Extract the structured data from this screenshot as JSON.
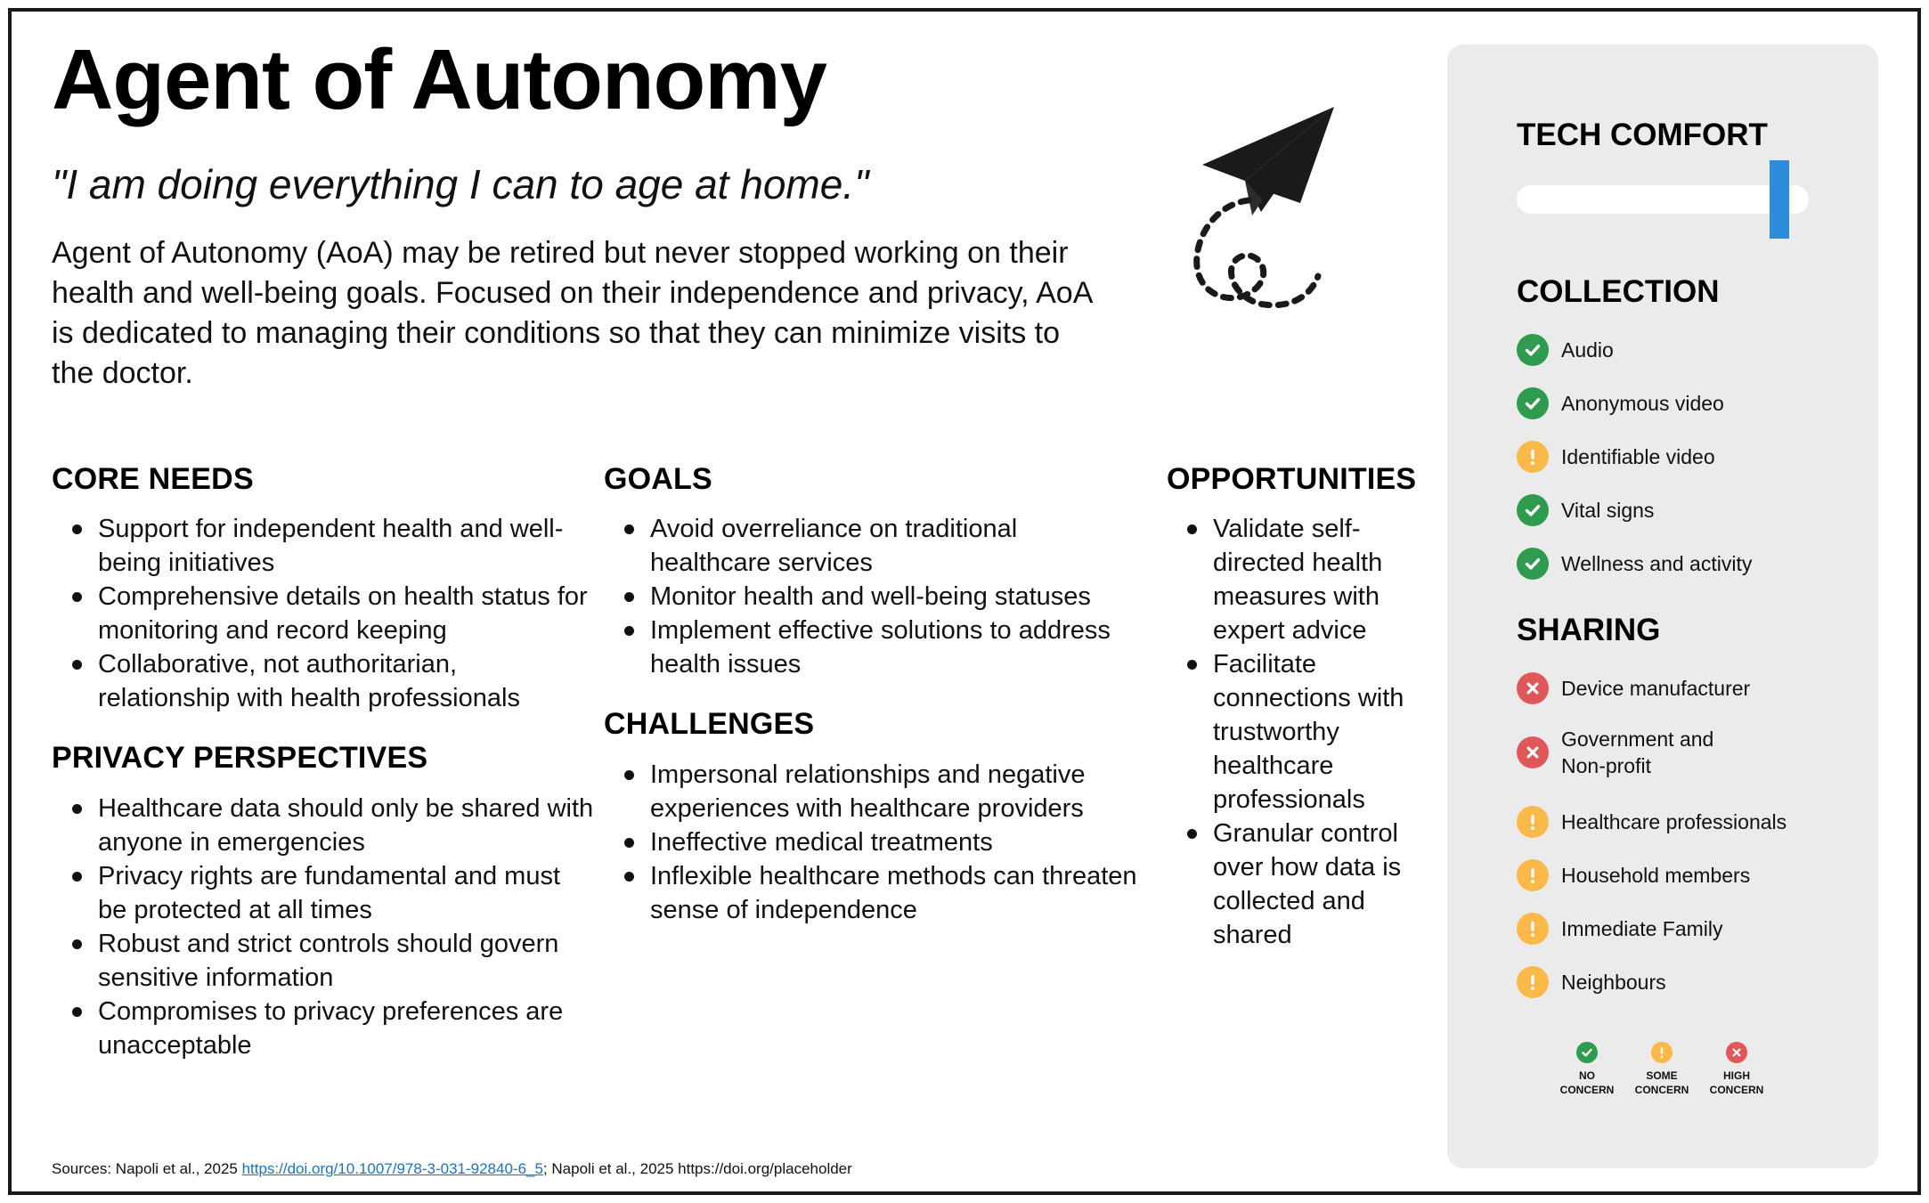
{
  "header": {
    "title": "Agent of Autonomy",
    "quote": "\"I am doing everything I can to age at home.\"",
    "intro": "Agent of Autonomy (AoA) may be retired but never stopped working on their health and well-being goals. Focused on their independence and privacy, AoA is dedicated to managing their conditions so that they can minimize visits to the doctor."
  },
  "illustration": {
    "icon": "paper-plane-icon"
  },
  "core_needs": {
    "heading": "CORE NEEDS",
    "items": [
      "Support for independent health and well-being initiatives",
      "Comprehensive details on health status for monitoring and record keeping",
      "Collaborative, not authoritarian, relationship with health professionals"
    ]
  },
  "privacy": {
    "heading": "PRIVACY PERSPECTIVES",
    "items": [
      "Healthcare data should only be shared with anyone in emergencies",
      "Privacy rights are fundamental and must be protected at all times",
      "Robust and strict controls should govern sensitive information",
      "Compromises to privacy preferences are unacceptable"
    ]
  },
  "goals": {
    "heading": "GOALS",
    "items": [
      "Avoid overreliance on traditional healthcare services",
      "Monitor health and well-being statuses",
      "Implement effective solutions to address health issues"
    ]
  },
  "challenges": {
    "heading": "CHALLENGES",
    "items": [
      "Impersonal relationships and negative experiences with healthcare providers",
      "Ineffective medical treatments",
      "Inflexible healthcare methods can threaten sense of independence"
    ]
  },
  "opportunities": {
    "heading": "OPPORTUNITIES",
    "items": [
      "Validate self-directed health measures with expert advice",
      "Facilitate connections with trustworthy healthcare professionals",
      "Granular control over how data is collected and shared"
    ]
  },
  "panel": {
    "tech_comfort": {
      "heading": "TECH COMFORT",
      "level": 0.9
    },
    "collection": {
      "heading": "COLLECTION",
      "items": [
        {
          "label": "Audio",
          "status": "no"
        },
        {
          "label": "Anonymous video",
          "status": "no"
        },
        {
          "label": "Identifiable video",
          "status": "some"
        },
        {
          "label": "Vital signs",
          "status": "no"
        },
        {
          "label": "Wellness and activity",
          "status": "no"
        }
      ]
    },
    "sharing": {
      "heading": "SHARING",
      "items": [
        {
          "label": "Device manufacturer",
          "status": "high"
        },
        {
          "label": "Government and\nNon-profit",
          "status": "high"
        },
        {
          "label": "Healthcare professionals",
          "status": "some"
        },
        {
          "label": "Household members",
          "status": "some"
        },
        {
          "label": "Immediate Family",
          "status": "some"
        },
        {
          "label": "Neighbours",
          "status": "some"
        }
      ]
    },
    "legend": [
      {
        "status": "no",
        "label": "NO\nCONCERN"
      },
      {
        "status": "some",
        "label": "SOME\nCONCERN"
      },
      {
        "status": "high",
        "label": "HIGH\nCONCERN"
      }
    ],
    "status_colors": {
      "no": "#2e9b4e",
      "some": "#fbb94a",
      "high": "#e0575a"
    },
    "status_icons": {
      "no": "check-circle-icon",
      "some": "warning-circle-icon",
      "high": "x-circle-icon"
    }
  },
  "sources": {
    "prefix": "Sources: Napoli et al., 2025 ",
    "link": "https://doi.org/10.1007/978-3-031-92840-6_5",
    "suffix": "; Napoli et al., 2025 https://doi.org/placeholder"
  }
}
